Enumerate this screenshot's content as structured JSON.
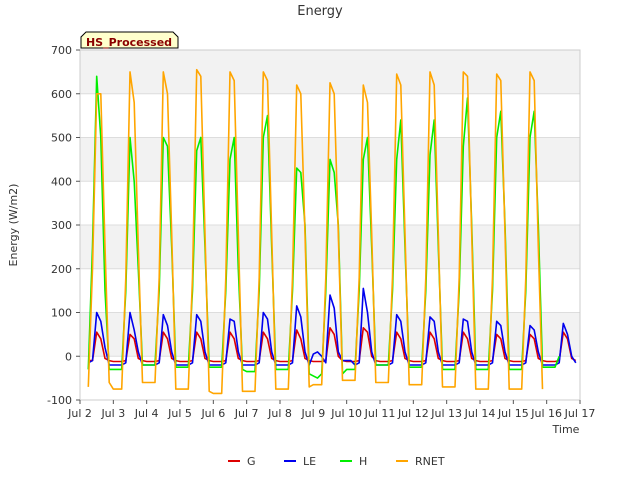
{
  "chart_data": {
    "type": "line",
    "title": "Energy",
    "xlabel": "Time",
    "ylabel": "Energy (W/m2)",
    "annotation": "HS_Processed",
    "xlim": [
      2.0,
      17.0
    ],
    "ylim": [
      -100,
      700
    ],
    "x_ticks": [
      2,
      3,
      4,
      5,
      6,
      7,
      8,
      9,
      10,
      11,
      12,
      13,
      14,
      15,
      16,
      17
    ],
    "x_tick_labels": [
      "Jul 2",
      "Jul 3",
      "Jul 4",
      "Jul 5",
      "Jul 6",
      "Jul 7",
      "Jul 8",
      "Jul 9",
      "Jul 10",
      "Jul 11",
      "Jul 12",
      "Jul 13",
      "Jul 14",
      "Jul 15",
      "Jul 16",
      "Jul 17"
    ],
    "y_ticks": [
      -100,
      0,
      100,
      200,
      300,
      400,
      500,
      600,
      700
    ],
    "y_tick_labels": [
      "-100",
      "0",
      "100",
      "200",
      "300",
      "400",
      "500",
      "600",
      "700"
    ],
    "x_unit": "day of July; each day sampled every 0.125 day",
    "legend_position": "bottom-center",
    "colors": {
      "G": "#dd0000",
      "LE": "#0000ee",
      "H": "#00ee00",
      "RNET": "#ffa500"
    },
    "series": [
      {
        "name": "G",
        "x_start": 2.25,
        "x_step": 0.125,
        "values": [
          -10,
          -10,
          55,
          40,
          -5,
          -10,
          -12,
          -12,
          -12,
          -10,
          50,
          40,
          -5,
          -10,
          -12,
          -12,
          -12,
          -10,
          55,
          40,
          -5,
          -10,
          -12,
          -12,
          -12,
          -10,
          55,
          40,
          -5,
          -10,
          -12,
          -12,
          -12,
          -10,
          55,
          40,
          -5,
          -10,
          -12,
          -12,
          -12,
          -10,
          55,
          40,
          -5,
          -10,
          -12,
          -12,
          -12,
          -10,
          60,
          40,
          -5,
          -10,
          -12,
          -12,
          -12,
          -10,
          65,
          50,
          0,
          -10,
          -12,
          -12,
          -12,
          -10,
          65,
          55,
          0,
          -10,
          -12,
          -12,
          -12,
          -10,
          55,
          40,
          -5,
          -10,
          -12,
          -12,
          -12,
          -10,
          55,
          40,
          -5,
          -10,
          -12,
          -12,
          -12,
          -10,
          55,
          40,
          -5,
          -10,
          -12,
          -12,
          -12,
          -10,
          50,
          40,
          -5,
          -10,
          -12,
          -12,
          -12,
          -10,
          50,
          40,
          -5,
          -10,
          -12,
          -12,
          -12,
          -10,
          55,
          40,
          -5,
          -10
        ]
      },
      {
        "name": "LE",
        "x_start": 2.25,
        "x_step": 0.125,
        "values": [
          -15,
          -10,
          100,
          80,
          20,
          -20,
          -20,
          -20,
          -20,
          -15,
          100,
          60,
          10,
          -20,
          -20,
          -20,
          -20,
          -15,
          95,
          70,
          10,
          -20,
          -20,
          -20,
          -20,
          -15,
          95,
          80,
          10,
          -20,
          -20,
          -20,
          -20,
          -15,
          85,
          80,
          10,
          -20,
          -20,
          -20,
          -20,
          -15,
          100,
          85,
          10,
          -20,
          -20,
          -20,
          -20,
          -15,
          115,
          90,
          10,
          -20,
          5,
          10,
          0,
          -15,
          140,
          110,
          10,
          -10,
          -10,
          -10,
          -20,
          -15,
          155,
          100,
          10,
          -20,
          -20,
          -20,
          -20,
          -15,
          95,
          80,
          10,
          -20,
          -20,
          -20,
          -20,
          -15,
          90,
          80,
          10,
          -20,
          -20,
          -20,
          -20,
          -15,
          85,
          80,
          10,
          -20,
          -20,
          -20,
          -20,
          -15,
          80,
          70,
          10,
          -20,
          -20,
          -20,
          -20,
          -15,
          70,
          60,
          10,
          -20,
          -20,
          -20,
          -20,
          -15,
          75,
          50,
          0,
          -15
        ]
      },
      {
        "name": "H",
        "x_start": 2.25,
        "x_step": 0.125,
        "values": [
          -30,
          250,
          640,
          500,
          150,
          -30,
          -30,
          -30,
          -30,
          150,
          500,
          400,
          200,
          -20,
          -20,
          -20,
          -20,
          150,
          500,
          480,
          250,
          -25,
          -25,
          -25,
          -25,
          150,
          470,
          500,
          250,
          -25,
          -25,
          -25,
          -25,
          150,
          450,
          500,
          200,
          -30,
          -35,
          -35,
          -35,
          150,
          500,
          550,
          250,
          -30,
          -30,
          -30,
          -30,
          150,
          430,
          420,
          300,
          -40,
          -45,
          -50,
          -40,
          150,
          450,
          420,
          300,
          -40,
          -30,
          -30,
          -30,
          150,
          450,
          500,
          250,
          -20,
          -20,
          -20,
          -20,
          150,
          450,
          540,
          250,
          -25,
          -25,
          -25,
          -25,
          150,
          460,
          540,
          250,
          -30,
          -30,
          -30,
          -30,
          150,
          480,
          590,
          300,
          -30,
          -30,
          -30,
          -30,
          150,
          500,
          560,
          300,
          -30,
          -30,
          -30,
          -30,
          150,
          500,
          560,
          300,
          -25,
          -25,
          -25,
          -25,
          0
        ]
      },
      {
        "name": "RNET",
        "x_start": 2.25,
        "x_step": 0.125,
        "values": [
          -70,
          200,
          600,
          600,
          250,
          -60,
          -75,
          -75,
          -75,
          180,
          650,
          580,
          250,
          -60,
          -60,
          -60,
          -60,
          180,
          650,
          600,
          280,
          -75,
          -75,
          -75,
          -75,
          180,
          655,
          640,
          280,
          -80,
          -85,
          -85,
          -85,
          180,
          650,
          630,
          280,
          -80,
          -80,
          -80,
          -80,
          180,
          650,
          630,
          280,
          -75,
          -75,
          -75,
          -75,
          180,
          620,
          600,
          280,
          -70,
          -65,
          -65,
          -65,
          180,
          625,
          600,
          280,
          -55,
          -55,
          -55,
          -55,
          180,
          620,
          580,
          280,
          -60,
          -60,
          -60,
          -60,
          180,
          645,
          620,
          280,
          -65,
          -65,
          -65,
          -65,
          180,
          650,
          620,
          280,
          -70,
          -70,
          -70,
          -70,
          180,
          650,
          640,
          280,
          -75,
          -75,
          -75,
          -75,
          180,
          645,
          630,
          280,
          -75,
          -75,
          -75,
          -75,
          180,
          650,
          630,
          250,
          -75
        ]
      }
    ]
  }
}
